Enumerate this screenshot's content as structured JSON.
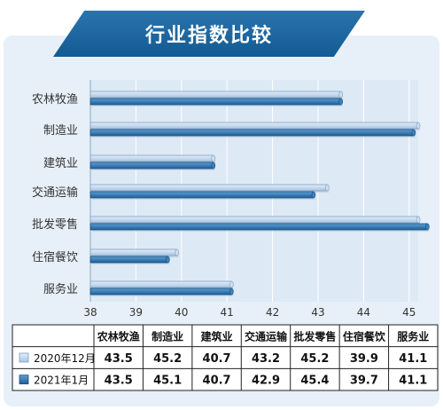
{
  "chart_data": {
    "type": "bar",
    "title": "行业指数比较",
    "categories": [
      "农林牧渔",
      "制造业",
      "建筑业",
      "交通运输",
      "批发零售",
      "住宿餐饮",
      "服务业"
    ],
    "series": [
      {
        "name": "2020年12月",
        "values": [
          43.5,
          45.2,
          40.7,
          43.2,
          45.2,
          39.9,
          41.1
        ],
        "color": "#bfd3e8"
      },
      {
        "name": "2021年1月",
        "values": [
          43.5,
          45.1,
          40.7,
          42.9,
          45.4,
          39.7,
          41.1
        ],
        "color": "#2f77b4"
      }
    ],
    "x_ticks": [
      38,
      39,
      40,
      41,
      42,
      43,
      44,
      45
    ],
    "xlim": [
      38,
      45.6
    ],
    "legend": "bottom-table"
  }
}
